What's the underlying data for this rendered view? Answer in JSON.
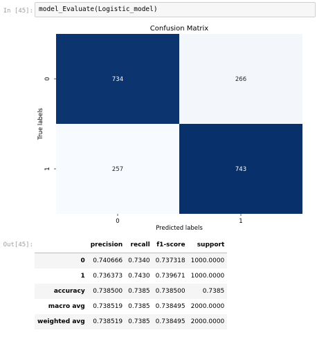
{
  "notebook": {
    "in_prompt": "In [45]:",
    "code": "model_Evaluate(Logistic_model)",
    "out_prompt": "Out[45]:"
  },
  "chart_data": {
    "type": "heatmap",
    "title": "Confusion Matrix",
    "xlabel": "Predicted labels",
    "ylabel": "True labels",
    "x_categories": [
      "0",
      "1"
    ],
    "y_categories": [
      "0",
      "1"
    ],
    "values": [
      [
        734,
        266
      ],
      [
        257,
        743
      ]
    ],
    "colormap": "Blues",
    "colors": {
      "high": "#08306b",
      "low": "#f7fbff",
      "text_light": "#ffffff",
      "text_dark": "#262626"
    },
    "colorbar": false
  },
  "report": {
    "columns": [
      "",
      "precision",
      "recall",
      "f1-score",
      "support"
    ],
    "rows": [
      [
        "0",
        "0.740666",
        "0.7340",
        "0.737318",
        "1000.0000"
      ],
      [
        "1",
        "0.736373",
        "0.7430",
        "0.739671",
        "1000.0000"
      ],
      [
        "accuracy",
        "0.738500",
        "0.7385",
        "0.738500",
        "0.7385"
      ],
      [
        "macro avg",
        "0.738519",
        "0.7385",
        "0.738495",
        "2000.0000"
      ],
      [
        "weighted avg",
        "0.738519",
        "0.7385",
        "0.738495",
        "2000.0000"
      ]
    ]
  }
}
